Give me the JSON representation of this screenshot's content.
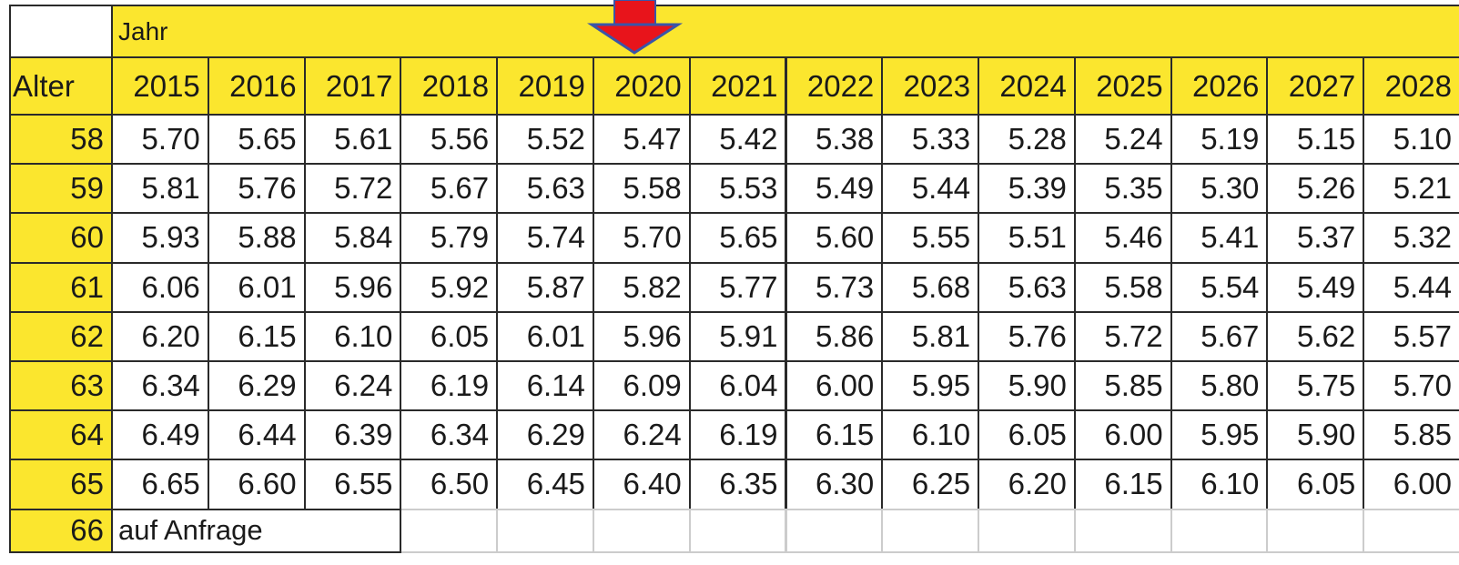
{
  "table": {
    "group_header": "Jahr",
    "row_header_label": "Alter",
    "columns": [
      "2015",
      "2016",
      "2017",
      "2018",
      "2019",
      "2020",
      "2021",
      "2022",
      "2023",
      "2024",
      "2025",
      "2026",
      "2027",
      "2028"
    ],
    "rows": [
      {
        "age": "58",
        "values": [
          "5.70",
          "5.65",
          "5.61",
          "5.56",
          "5.52",
          "5.47",
          "5.42",
          "5.38",
          "5.33",
          "5.28",
          "5.24",
          "5.19",
          "5.15",
          "5.10"
        ]
      },
      {
        "age": "59",
        "values": [
          "5.81",
          "5.76",
          "5.72",
          "5.67",
          "5.63",
          "5.58",
          "5.53",
          "5.49",
          "5.44",
          "5.39",
          "5.35",
          "5.30",
          "5.26",
          "5.21"
        ]
      },
      {
        "age": "60",
        "values": [
          "5.93",
          "5.88",
          "5.84",
          "5.79",
          "5.74",
          "5.70",
          "5.65",
          "5.60",
          "5.55",
          "5.51",
          "5.46",
          "5.41",
          "5.37",
          "5.32"
        ]
      },
      {
        "age": "61",
        "values": [
          "6.06",
          "6.01",
          "5.96",
          "5.92",
          "5.87",
          "5.82",
          "5.77",
          "5.73",
          "5.68",
          "5.63",
          "5.58",
          "5.54",
          "5.49",
          "5.44"
        ]
      },
      {
        "age": "62",
        "values": [
          "6.20",
          "6.15",
          "6.10",
          "6.05",
          "6.01",
          "5.96",
          "5.91",
          "5.86",
          "5.81",
          "5.76",
          "5.72",
          "5.67",
          "5.62",
          "5.57"
        ]
      },
      {
        "age": "63",
        "values": [
          "6.34",
          "6.29",
          "6.24",
          "6.19",
          "6.14",
          "6.09",
          "6.04",
          "6.00",
          "5.95",
          "5.90",
          "5.85",
          "5.80",
          "5.75",
          "5.70"
        ]
      },
      {
        "age": "64",
        "values": [
          "6.49",
          "6.44",
          "6.39",
          "6.34",
          "6.29",
          "6.24",
          "6.19",
          "6.15",
          "6.10",
          "6.05",
          "6.00",
          "5.95",
          "5.90",
          "5.85"
        ]
      },
      {
        "age": "65",
        "values": [
          "6.65",
          "6.60",
          "6.55",
          "6.50",
          "6.45",
          "6.40",
          "6.35",
          "6.30",
          "6.25",
          "6.20",
          "6.15",
          "6.10",
          "6.05",
          "6.00"
        ]
      }
    ],
    "last_row": {
      "age": "66",
      "note": "auf Anfrage"
    }
  }
}
